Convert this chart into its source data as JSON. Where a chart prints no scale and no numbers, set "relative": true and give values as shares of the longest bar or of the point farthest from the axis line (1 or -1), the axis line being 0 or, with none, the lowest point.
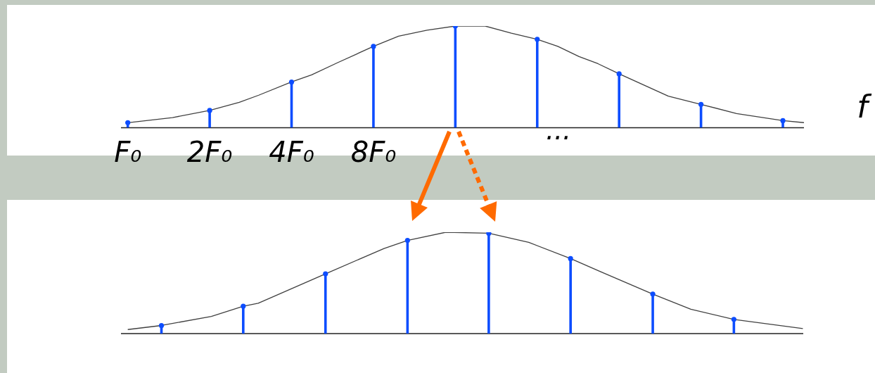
{
  "chart_data": [
    {
      "type": "lollipop",
      "xlabel": "f",
      "annotations": [
        "..."
      ],
      "log": "x",
      "xlim": [
        0.944,
        306
      ],
      "xticks": [
        {
          "value": 1,
          "label": "F₀"
        },
        {
          "value": 2,
          "label": "2F₀"
        },
        {
          "value": 4,
          "label": "4F₀"
        },
        {
          "value": 8,
          "label": "8F₀"
        }
      ],
      "relative": true,
      "marker": "circle",
      "series": [
        {
          "type": "line",
          "color": "#404040",
          "marker": "none",
          "x": [
            1,
            1.46,
            2,
            2.57,
            3.03,
            4,
            4.74,
            5.91,
            8,
            9.9,
            12.6,
            16,
            20.6,
            25.7,
            32,
            38.1,
            45.6,
            53.5,
            64,
            97.1,
            128,
            173,
            256,
            306
          ],
          "values": [
            0.05,
            0.1,
            0.17,
            0.25,
            0.32,
            0.45,
            0.52,
            0.64,
            0.8,
            0.9,
            0.96,
            1,
            1,
            0.93,
            0.87,
            0.8,
            0.7,
            0.63,
            0.53,
            0.31,
            0.23,
            0.14,
            0.07,
            0.05
          ]
        },
        {
          "color": "#0d4dff",
          "x": [
            1,
            2,
            4,
            8,
            16,
            32,
            64,
            128,
            256
          ],
          "values": [
            0.05,
            0.17,
            0.45,
            0.8,
            1,
            0.87,
            0.53,
            0.23,
            0.07
          ]
        }
      ]
    },
    {
      "type": "lollipop",
      "log": "x",
      "xlim": [
        0.944,
        306
      ],
      "tick_labels": false,
      "relative": true,
      "marker": "circle",
      "series": [
        {
          "type": "line",
          "color": "#404040",
          "marker": "none",
          "x": [
            1,
            1.33,
            2.03,
            2.66,
            3.02,
            5.34,
            8.77,
            10.7,
            14.8,
            21.3,
            29.9,
            42.6,
            55,
            85.5,
            118,
            170,
            305
          ],
          "values": [
            0.04,
            0.08,
            0.17,
            0.27,
            0.3,
            0.59,
            0.84,
            0.92,
            1,
            0.99,
            0.9,
            0.74,
            0.61,
            0.39,
            0.24,
            0.14,
            0.05
          ]
        },
        {
          "color": "#0d4dff",
          "x": [
            1.33,
            2.66,
            5.34,
            10.7,
            21.3,
            42.6,
            85.5,
            170
          ],
          "values": [
            0.08,
            0.27,
            0.59,
            0.92,
            0.99,
            0.74,
            0.39,
            0.14
          ]
        }
      ]
    }
  ]
}
